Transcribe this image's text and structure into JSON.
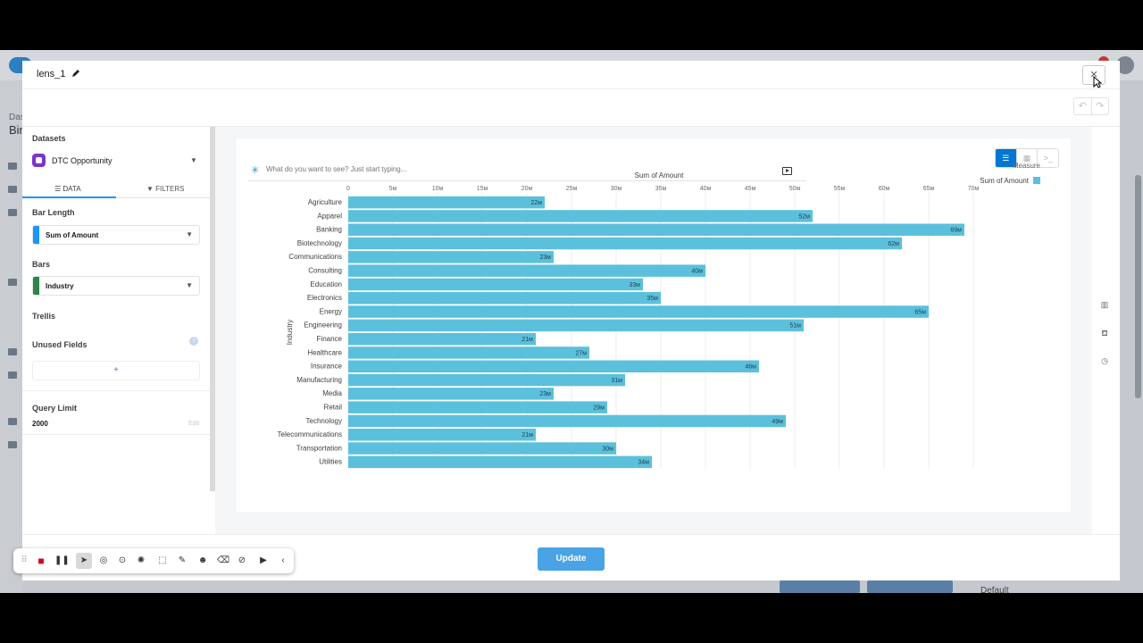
{
  "background": {
    "dashboard_label": "Dash",
    "dashboard_title": "Bir",
    "default_label": "Default"
  },
  "modal": {
    "title": "lens_1",
    "close_label": "×",
    "undo_label": "↶",
    "redo_label": "↷"
  },
  "sidebar": {
    "datasets_label": "Datasets",
    "dataset_name": "DTC Opportunity",
    "tab_data": "☰  DATA",
    "tab_filters": "▼  FILTERS",
    "bar_length_label": "Bar Length",
    "bar_length_value": "Sum of Amount",
    "bars_label": "Bars",
    "bars_value": "Industry",
    "trellis_label": "Trellis",
    "unused_fields_label": "Unused Fields",
    "add_label": "+",
    "query_limit_label": "Query Limit",
    "query_limit_value": "2000",
    "edit_label": "Edit"
  },
  "search": {
    "placeholder": "What do you want to see? Just start typing..."
  },
  "footer": {
    "update_label": "Update"
  },
  "colors": {
    "bar": "#5bc0dc",
    "accent": "#0176d3",
    "update_button": "#49a3e4"
  },
  "chart_data": {
    "type": "bar",
    "orientation": "horizontal",
    "title": "Sum of Amount",
    "xlabel": "Sum of Amount",
    "ylabel": "Industry",
    "legend_title": "Measure",
    "legend_position": "top-right",
    "xlim": [
      0,
      70
    ],
    "x_ticks": [
      "0",
      "5м",
      "10м",
      "15м",
      "20м",
      "25м",
      "30м",
      "35м",
      "40м",
      "45м",
      "50м",
      "55м",
      "60м",
      "65м",
      "70м"
    ],
    "grid": true,
    "series": [
      {
        "name": "Sum of Amount",
        "values": [
          22,
          52,
          69,
          62,
          23,
          40,
          33,
          35,
          65,
          51,
          21,
          27,
          46,
          31,
          23,
          29,
          49,
          21,
          30,
          34
        ],
        "labels": [
          "22м",
          "52м",
          "69м",
          "62м",
          "23м",
          "40м",
          "33м",
          "35м",
          "65м",
          "51м",
          "21м",
          "27м",
          "46м",
          "31м",
          "23м",
          "29м",
          "49м",
          "21м",
          "30м",
          "34м"
        ]
      }
    ],
    "categories": [
      "Agriculture",
      "Apparel",
      "Banking",
      "Biotechnology",
      "Communications",
      "Consulting",
      "Education",
      "Electronics",
      "Energy",
      "Engineering",
      "Finance",
      "Healthcare",
      "Insurance",
      "Manufacturing",
      "Media",
      "Retail",
      "Technology",
      "Telecommunications",
      "Transportation",
      "Utilities"
    ]
  }
}
